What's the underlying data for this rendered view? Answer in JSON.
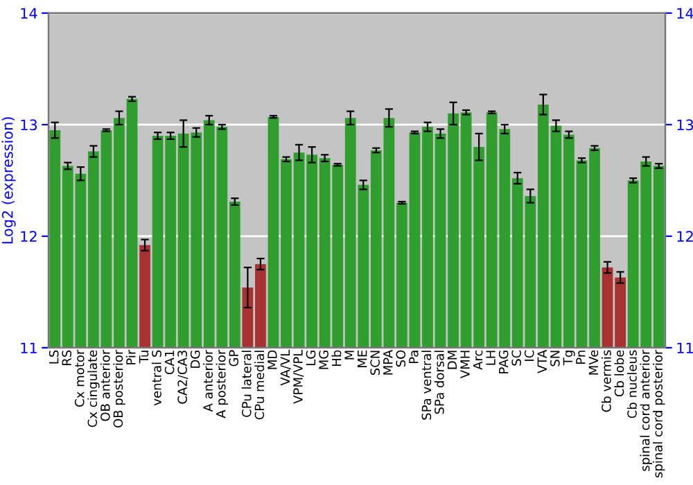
{
  "chart_data": {
    "type": "bar",
    "ylabel": "Log2 (expression)",
    "categories": [
      "LS",
      "RS",
      "Cx motor",
      "Cx cingulate",
      "OB anterior",
      "OB posterior",
      "Pir",
      "Tu",
      "ventral S",
      "CA1",
      "CA2/CA3",
      "DG",
      "A anterior",
      "A posterior",
      "GP",
      "CPu lateral",
      "CPu medial",
      "MD",
      "VA/VL",
      "VPM/VPL",
      "LG",
      "MG",
      "Hb",
      "M",
      "ME",
      "SCN",
      "MPA",
      "SO",
      "Pa",
      "SPa ventral",
      "SPa dorsal",
      "DM",
      "VMH",
      "Arc",
      "LH",
      "PAG",
      "SC",
      "IC",
      "VTA",
      "SN",
      "Tg",
      "Pn",
      "MVe",
      "Cb vermis",
      "Cb lobe",
      "Cb nucleus",
      "spinal cord anterior",
      "spinal cord posterior"
    ],
    "values": [
      12.95,
      12.63,
      12.56,
      12.76,
      12.95,
      13.06,
      13.23,
      11.92,
      12.9,
      12.9,
      12.92,
      12.93,
      13.04,
      12.98,
      12.31,
      11.54,
      11.75,
      13.07,
      12.69,
      12.75,
      12.73,
      12.7,
      12.64,
      13.06,
      12.46,
      12.77,
      13.06,
      12.3,
      12.93,
      12.98,
      12.92,
      13.1,
      13.11,
      12.8,
      13.11,
      12.96,
      12.52,
      12.36,
      13.18,
      12.99,
      12.91,
      12.68,
      12.79,
      11.72,
      11.63,
      12.5,
      12.67,
      12.63
    ],
    "errors": [
      0.07,
      0.03,
      0.06,
      0.05,
      0.01,
      0.06,
      0.02,
      0.05,
      0.03,
      0.03,
      0.12,
      0.04,
      0.04,
      0.02,
      0.03,
      0.18,
      0.05,
      0.01,
      0.02,
      0.07,
      0.07,
      0.03,
      0.01,
      0.06,
      0.04,
      0.02,
      0.08,
      0.01,
      0.01,
      0.04,
      0.04,
      0.1,
      0.02,
      0.12,
      0.01,
      0.04,
      0.05,
      0.06,
      0.09,
      0.05,
      0.03,
      0.02,
      0.02,
      0.05,
      0.05,
      0.02,
      0.04,
      0.02
    ],
    "colors": [
      "#2f9e2f",
      "#2f9e2f",
      "#2f9e2f",
      "#2f9e2f",
      "#2f9e2f",
      "#2f9e2f",
      "#2f9e2f",
      "#a83232",
      "#2f9e2f",
      "#2f9e2f",
      "#2f9e2f",
      "#2f9e2f",
      "#2f9e2f",
      "#2f9e2f",
      "#2f9e2f",
      "#a83232",
      "#a83232",
      "#2f9e2f",
      "#2f9e2f",
      "#2f9e2f",
      "#2f9e2f",
      "#2f9e2f",
      "#2f9e2f",
      "#2f9e2f",
      "#2f9e2f",
      "#2f9e2f",
      "#2f9e2f",
      "#2f9e2f",
      "#2f9e2f",
      "#2f9e2f",
      "#2f9e2f",
      "#2f9e2f",
      "#2f9e2f",
      "#2f9e2f",
      "#2f9e2f",
      "#2f9e2f",
      "#2f9e2f",
      "#2f9e2f",
      "#2f9e2f",
      "#2f9e2f",
      "#2f9e2f",
      "#2f9e2f",
      "#2f9e2f",
      "#a83232",
      "#a83232",
      "#2f9e2f",
      "#2f9e2f",
      "#2f9e2f"
    ],
    "ylim": [
      11,
      14
    ],
    "yticks": [
      11,
      12,
      13,
      14
    ],
    "y2lim": [
      11,
      14
    ],
    "y2ticks": [
      11,
      12,
      13,
      14
    ],
    "grid": "y",
    "legend": false
  }
}
